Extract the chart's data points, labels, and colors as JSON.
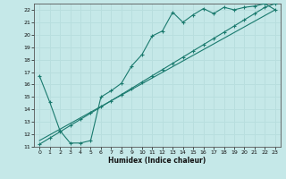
{
  "xlabel": "Humidex (Indice chaleur)",
  "bg_color": "#c5e8e8",
  "grid_color": "#aad4d4",
  "line_color": "#1a7a6e",
  "xlim": [
    -0.5,
    23.5
  ],
  "ylim": [
    11,
    22.5
  ],
  "yticks": [
    11,
    12,
    13,
    14,
    15,
    16,
    17,
    18,
    19,
    20,
    21,
    22
  ],
  "xticks": [
    0,
    1,
    2,
    3,
    4,
    5,
    6,
    7,
    8,
    9,
    10,
    11,
    12,
    13,
    14,
    15,
    16,
    17,
    18,
    19,
    20,
    21,
    22,
    23
  ],
  "line1_x": [
    0,
    1,
    2,
    3,
    4,
    5,
    6,
    7,
    8,
    9,
    10,
    11,
    12,
    13,
    14,
    15,
    16,
    17,
    18,
    19,
    20,
    21,
    22,
    23
  ],
  "line1_y": [
    16.7,
    14.6,
    12.3,
    11.3,
    11.3,
    11.5,
    15.0,
    15.5,
    16.1,
    17.5,
    18.4,
    19.9,
    20.3,
    21.8,
    21.0,
    21.6,
    22.1,
    21.7,
    22.2,
    22.0,
    22.2,
    22.3,
    22.5,
    22.0
  ],
  "line2_x": [
    0,
    1,
    2,
    3,
    4,
    5,
    6,
    7,
    8,
    9,
    10,
    11,
    12,
    13,
    14,
    15,
    16,
    17,
    18,
    19,
    20,
    21,
    22,
    23
  ],
  "line2_y": [
    11.2,
    11.7,
    12.2,
    12.7,
    13.2,
    13.7,
    14.2,
    14.7,
    15.2,
    15.7,
    16.2,
    16.7,
    17.2,
    17.7,
    18.2,
    18.7,
    19.2,
    19.7,
    20.2,
    20.7,
    21.2,
    21.7,
    22.2,
    22.5
  ],
  "line3_x": [
    0,
    23
  ],
  "line3_y": [
    11.5,
    22.0
  ]
}
